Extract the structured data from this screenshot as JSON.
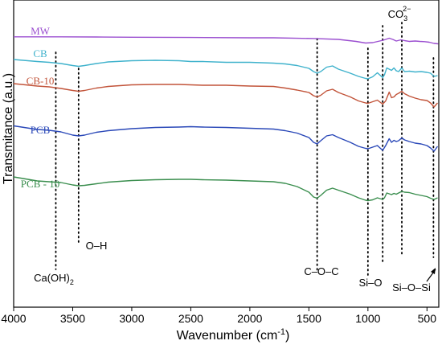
{
  "chart_data": {
    "type": "line",
    "xlabel": "Wavenumber (cm",
    "xlabel_sup": "-1",
    "xlabel_end": ")",
    "ylabel": "Transmitance (a.u.)",
    "xlim": [
      4000,
      400
    ],
    "x_reversed": true,
    "x_ticks": [
      {
        "value": 4000,
        "label": "4000"
      },
      {
        "value": 3500,
        "label": "3500"
      },
      {
        "value": 3000,
        "label": "3000"
      },
      {
        "value": 2500,
        "label": "2500"
      },
      {
        "value": 2000,
        "label": "2000"
      },
      {
        "value": 1500,
        "label": "1500"
      },
      {
        "value": 1000,
        "label": "1000"
      },
      {
        "value": 500,
        "label": "500"
      }
    ],
    "y_ticks": "none",
    "grid": false,
    "series": [
      {
        "name": "MW",
        "color": "#9b4fd0",
        "points": [
          [
            4000,
            0.8
          ],
          [
            3600,
            0.8
          ],
          [
            3300,
            1.0
          ],
          [
            3000,
            1.3
          ],
          [
            2500,
            1.6
          ],
          [
            2000,
            2.0
          ],
          [
            1800,
            2.0
          ],
          [
            1600,
            2.6
          ],
          [
            1450,
            2.9
          ],
          [
            1250,
            4.0
          ],
          [
            1100,
            6.5
          ],
          [
            1020,
            8.5
          ],
          [
            960,
            8.0
          ],
          [
            900,
            6.0
          ],
          [
            870,
            5.0
          ],
          [
            820,
            2.5
          ],
          [
            790,
            4.0
          ],
          [
            760,
            6.0
          ],
          [
            720,
            4.5
          ],
          [
            690,
            5.5
          ],
          [
            650,
            6.5
          ],
          [
            600,
            6.0
          ],
          [
            560,
            6.5
          ],
          [
            520,
            6.8
          ],
          [
            480,
            7.5
          ],
          [
            440,
            9.0
          ],
          [
            405,
            9.5
          ]
        ]
      },
      {
        "name": "CB",
        "color": "#3fb2cc",
        "points": [
          [
            4000,
            1.0
          ],
          [
            3800,
            3.5
          ],
          [
            3700,
            4.5
          ],
          [
            3600,
            6.0
          ],
          [
            3500,
            8.5
          ],
          [
            3450,
            9.5
          ],
          [
            3400,
            8.5
          ],
          [
            3300,
            6.0
          ],
          [
            3200,
            4.0
          ],
          [
            3000,
            2.5
          ],
          [
            2800,
            2.0
          ],
          [
            2600,
            2.5
          ],
          [
            2500,
            3.5
          ],
          [
            2400,
            3.5
          ],
          [
            2200,
            4.5
          ],
          [
            2000,
            4.5
          ],
          [
            1800,
            5.5
          ],
          [
            1700,
            6.5
          ],
          [
            1600,
            8.5
          ],
          [
            1500,
            12.0
          ],
          [
            1460,
            16.0
          ],
          [
            1430,
            18.0
          ],
          [
            1400,
            16.0
          ],
          [
            1350,
            10.5
          ],
          [
            1300,
            9.0
          ],
          [
            1250,
            13.0
          ],
          [
            1150,
            18.0
          ],
          [
            1080,
            22.0
          ],
          [
            1020,
            24.5
          ],
          [
            1000,
            25.0
          ],
          [
            960,
            22.5
          ],
          [
            920,
            17.5
          ],
          [
            875,
            23.5
          ],
          [
            860,
            20.0
          ],
          [
            840,
            11.5
          ],
          [
            800,
            14.5
          ],
          [
            780,
            11.5
          ],
          [
            760,
            15.0
          ],
          [
            740,
            16.0
          ],
          [
            713,
            11.5
          ],
          [
            690,
            16.0
          ],
          [
            650,
            15.5
          ],
          [
            600,
            16.5
          ],
          [
            550,
            16.0
          ],
          [
            500,
            17.0
          ],
          [
            470,
            18.0
          ],
          [
            440,
            22.0
          ],
          [
            410,
            21.0
          ]
        ]
      },
      {
        "name": "CB-10",
        "color": "#c2543a",
        "points": [
          [
            4000,
            1.0
          ],
          [
            3800,
            4.0
          ],
          [
            3700,
            5.0
          ],
          [
            3600,
            7.0
          ],
          [
            3500,
            9.5
          ],
          [
            3450,
            10.5
          ],
          [
            3400,
            9.5
          ],
          [
            3300,
            6.5
          ],
          [
            3200,
            4.5
          ],
          [
            3000,
            2.5
          ],
          [
            2800,
            2.0
          ],
          [
            2600,
            2.0
          ],
          [
            2500,
            2.5
          ],
          [
            2400,
            3.0
          ],
          [
            2200,
            3.0
          ],
          [
            2000,
            4.0
          ],
          [
            1800,
            4.5
          ],
          [
            1700,
            6.5
          ],
          [
            1600,
            9.0
          ],
          [
            1500,
            12.0
          ],
          [
            1460,
            16.0
          ],
          [
            1430,
            17.5
          ],
          [
            1400,
            15.5
          ],
          [
            1350,
            10.0
          ],
          [
            1300,
            8.0
          ],
          [
            1250,
            12.0
          ],
          [
            1150,
            17.5
          ],
          [
            1080,
            22.5
          ],
          [
            1020,
            25.0
          ],
          [
            1000,
            25.5
          ],
          [
            960,
            23.5
          ],
          [
            920,
            21.5
          ],
          [
            875,
            26.5
          ],
          [
            850,
            22.5
          ],
          [
            820,
            11.5
          ],
          [
            800,
            18.5
          ],
          [
            780,
            17.5
          ],
          [
            760,
            14.5
          ],
          [
            740,
            13.0
          ],
          [
            713,
            10.5
          ],
          [
            690,
            13.5
          ],
          [
            650,
            16.5
          ],
          [
            600,
            19.0
          ],
          [
            550,
            21.0
          ],
          [
            500,
            22.0
          ],
          [
            470,
            25.0
          ],
          [
            440,
            30.0
          ],
          [
            410,
            25.0
          ]
        ]
      },
      {
        "name": "PCB",
        "color": "#2a48b8",
        "points": [
          [
            4000,
            1.5
          ],
          [
            3800,
            6.0
          ],
          [
            3700,
            7.0
          ],
          [
            3600,
            9.0
          ],
          [
            3500,
            13.0
          ],
          [
            3450,
            14.0
          ],
          [
            3400,
            13.0
          ],
          [
            3300,
            9.5
          ],
          [
            3200,
            7.5
          ],
          [
            3000,
            5.0
          ],
          [
            2800,
            3.5
          ],
          [
            2600,
            3.0
          ],
          [
            2500,
            2.5
          ],
          [
            2400,
            3.0
          ],
          [
            2200,
            3.5
          ],
          [
            2000,
            4.5
          ],
          [
            1800,
            5.5
          ],
          [
            1700,
            7.5
          ],
          [
            1600,
            10.5
          ],
          [
            1500,
            16.0
          ],
          [
            1460,
            22.0
          ],
          [
            1430,
            24.0
          ],
          [
            1400,
            20.0
          ],
          [
            1350,
            14.0
          ],
          [
            1300,
            12.5
          ],
          [
            1250,
            16.0
          ],
          [
            1150,
            22.0
          ],
          [
            1080,
            27.0
          ],
          [
            1020,
            29.5
          ],
          [
            1000,
            30.0
          ],
          [
            960,
            28.0
          ],
          [
            920,
            26.0
          ],
          [
            875,
            32.0
          ],
          [
            850,
            26.0
          ],
          [
            820,
            17.5
          ],
          [
            800,
            22.0
          ],
          [
            780,
            19.5
          ],
          [
            760,
            21.0
          ],
          [
            740,
            20.0
          ],
          [
            713,
            16.5
          ],
          [
            690,
            19.0
          ],
          [
            650,
            21.0
          ],
          [
            600,
            23.0
          ],
          [
            550,
            24.0
          ],
          [
            500,
            26.0
          ],
          [
            470,
            29.0
          ],
          [
            440,
            33.0
          ],
          [
            410,
            27.0
          ]
        ]
      },
      {
        "name": "PCB - 10",
        "color": "#3a8e4e",
        "points": [
          [
            4000,
            1.0
          ],
          [
            3800,
            6.0
          ],
          [
            3700,
            7.0
          ],
          [
            3600,
            8.0
          ],
          [
            3500,
            11.0
          ],
          [
            3450,
            12.0
          ],
          [
            3400,
            11.5
          ],
          [
            3300,
            9.5
          ],
          [
            3200,
            7.5
          ],
          [
            3000,
            5.5
          ],
          [
            2800,
            4.5
          ],
          [
            2600,
            4.0
          ],
          [
            2500,
            4.0
          ],
          [
            2400,
            4.5
          ],
          [
            2200,
            5.0
          ],
          [
            2000,
            6.0
          ],
          [
            1800,
            7.0
          ],
          [
            1700,
            9.0
          ],
          [
            1600,
            13.0
          ],
          [
            1500,
            20.0
          ],
          [
            1460,
            26.0
          ],
          [
            1430,
            27.5
          ],
          [
            1400,
            24.0
          ],
          [
            1350,
            17.5
          ],
          [
            1300,
            15.0
          ],
          [
            1250,
            17.5
          ],
          [
            1150,
            22.5
          ],
          [
            1080,
            27.0
          ],
          [
            1020,
            30.0
          ],
          [
            1000,
            30.5
          ],
          [
            960,
            29.5
          ],
          [
            920,
            27.0
          ],
          [
            875,
            29.0
          ],
          [
            860,
            27.0
          ],
          [
            840,
            21.0
          ],
          [
            800,
            23.0
          ],
          [
            780,
            21.5
          ],
          [
            760,
            22.5
          ],
          [
            740,
            21.0
          ],
          [
            713,
            19.0
          ],
          [
            690,
            20.0
          ],
          [
            650,
            20.5
          ],
          [
            600,
            22.5
          ],
          [
            550,
            24.0
          ],
          [
            500,
            25.5
          ],
          [
            470,
            27.5
          ],
          [
            440,
            29.0
          ],
          [
            410,
            27.0
          ]
        ]
      }
    ],
    "markers": [
      {
        "x": 3643,
        "label": "Ca(OH)",
        "sub": "2",
        "sup": "",
        "label_pos": "bottom-left"
      },
      {
        "x": 3450,
        "label": "O–H",
        "sub": "",
        "sup": "",
        "label_pos": "bottom"
      },
      {
        "x": 1430,
        "label": "C–O–C",
        "sub": "",
        "sup": "",
        "label_pos": "bottom"
      },
      {
        "x": 1000,
        "label": "Si–O",
        "sub": "",
        "sup": "",
        "label_pos": "bottom"
      },
      {
        "x": 875,
        "label": "CO",
        "sub": "3",
        "sup": "2−",
        "label_pos": "top"
      },
      {
        "x": 713,
        "label": "",
        "sub": "",
        "sup": "",
        "label_pos": "top"
      },
      {
        "x": 445,
        "label": "Si–O–Si",
        "sub": "",
        "sup": "",
        "label_pos": "bottom-arrow"
      }
    ]
  }
}
